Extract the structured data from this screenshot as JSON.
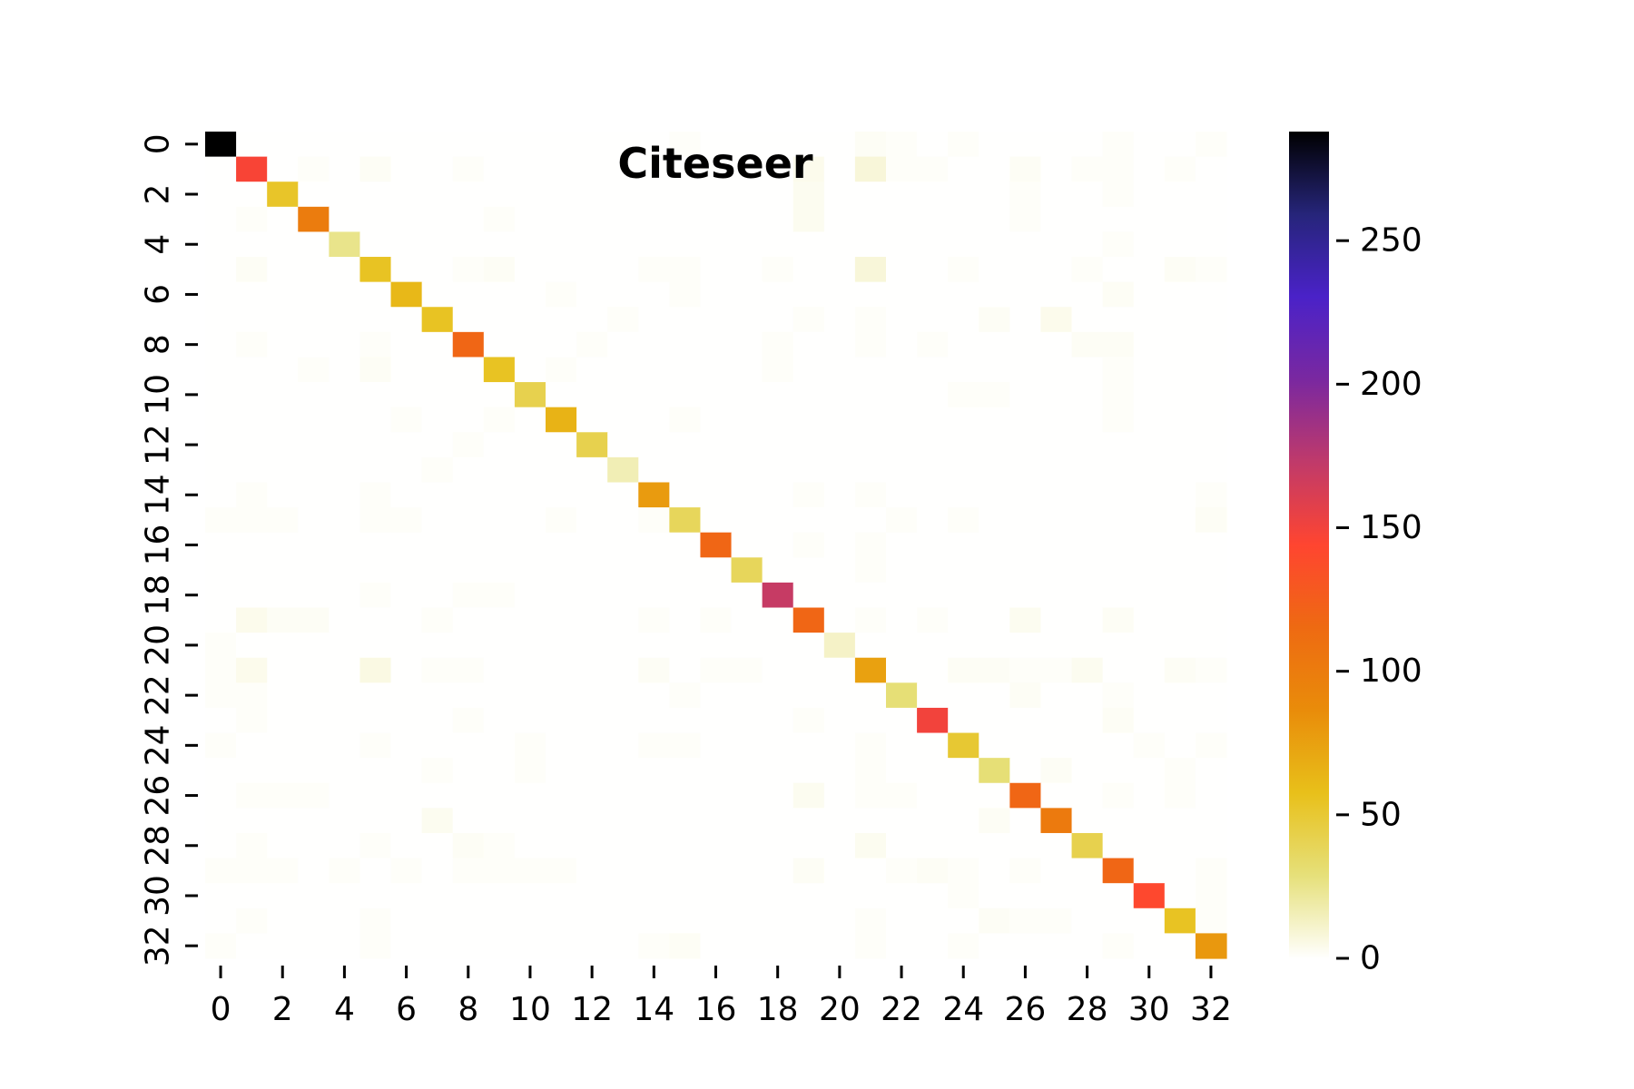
{
  "chart_data": {
    "type": "heatmap",
    "title": "Citeseer",
    "xlabel": "",
    "ylabel": "",
    "n_rows": 33,
    "n_cols": 33,
    "x_tick_labels": [
      "0",
      "2",
      "4",
      "6",
      "8",
      "10",
      "12",
      "14",
      "16",
      "18",
      "20",
      "22",
      "24",
      "26",
      "28",
      "30",
      "32"
    ],
    "y_tick_labels": [
      "0",
      "2",
      "4",
      "6",
      "8",
      "10",
      "12",
      "14",
      "16",
      "18",
      "20",
      "22",
      "24",
      "26",
      "28",
      "30",
      "32"
    ],
    "colorbar": {
      "min": 0,
      "max": 288,
      "ticks": [
        0,
        50,
        100,
        150,
        200,
        250
      ],
      "tick_labels": [
        "0",
        "50",
        "100",
        "150",
        "200",
        "250"
      ],
      "colormap": "CMRmap_r",
      "colormap_stops": [
        "#fffffe",
        "#e6e07a",
        "#e8c01a",
        "#e98c0a",
        "#ee6a12",
        "#ff4530",
        "#c03a6a",
        "#7a28a0",
        "#4a22c8",
        "#26257a",
        "#000000"
      ]
    },
    "grid": false,
    "diagonal": [
      288,
      147,
      53,
      100,
      25,
      55,
      62,
      55,
      118,
      55,
      42,
      65,
      42,
      16,
      78,
      38,
      118,
      38,
      170,
      118,
      12,
      75,
      30,
      150,
      50,
      30,
      118,
      102,
      42,
      118,
      142,
      55,
      80
    ],
    "off_diagonal": [
      [
        0,
        15,
        1
      ],
      [
        0,
        21,
        2
      ],
      [
        0,
        22,
        1
      ],
      [
        0,
        24,
        1
      ],
      [
        0,
        29,
        1
      ],
      [
        0,
        32,
        1
      ],
      [
        1,
        3,
        1
      ],
      [
        1,
        5,
        2
      ],
      [
        1,
        8,
        1
      ],
      [
        1,
        19,
        4
      ],
      [
        1,
        21,
        8
      ],
      [
        1,
        22,
        1
      ],
      [
        1,
        23,
        1
      ],
      [
        1,
        26,
        2
      ],
      [
        1,
        28,
        1
      ],
      [
        1,
        29,
        1
      ],
      [
        1,
        31,
        1
      ],
      [
        2,
        19,
        3
      ],
      [
        2,
        26,
        1
      ],
      [
        2,
        29,
        1
      ],
      [
        3,
        1,
        1
      ],
      [
        3,
        9,
        1
      ],
      [
        3,
        19,
        3
      ],
      [
        3,
        26,
        1
      ],
      [
        4,
        29,
        1
      ],
      [
        5,
        1,
        2
      ],
      [
        5,
        8,
        1
      ],
      [
        5,
        9,
        2
      ],
      [
        5,
        14,
        1
      ],
      [
        5,
        15,
        1
      ],
      [
        5,
        18,
        1
      ],
      [
        5,
        21,
        8
      ],
      [
        5,
        24,
        1
      ],
      [
        5,
        28,
        1
      ],
      [
        5,
        31,
        2
      ],
      [
        5,
        32,
        1
      ],
      [
        6,
        11,
        1
      ],
      [
        6,
        15,
        1
      ],
      [
        6,
        29,
        2
      ],
      [
        7,
        13,
        1
      ],
      [
        7,
        19,
        1
      ],
      [
        7,
        21,
        1
      ],
      [
        7,
        25,
        2
      ],
      [
        7,
        27,
        4
      ],
      [
        8,
        1,
        1
      ],
      [
        8,
        5,
        1
      ],
      [
        8,
        12,
        1
      ],
      [
        8,
        18,
        1
      ],
      [
        8,
        21,
        1
      ],
      [
        8,
        23,
        1
      ],
      [
        8,
        28,
        2
      ],
      [
        8,
        29,
        2
      ],
      [
        9,
        3,
        1
      ],
      [
        9,
        5,
        2
      ],
      [
        9,
        11,
        1
      ],
      [
        9,
        18,
        1
      ],
      [
        9,
        29,
        1
      ],
      [
        10,
        24,
        1
      ],
      [
        10,
        25,
        1
      ],
      [
        10,
        29,
        1
      ],
      [
        11,
        6,
        1
      ],
      [
        11,
        9,
        1
      ],
      [
        11,
        15,
        1
      ],
      [
        11,
        29,
        1
      ],
      [
        12,
        8,
        1
      ],
      [
        13,
        7,
        1
      ],
      [
        14,
        1,
        1
      ],
      [
        14,
        5,
        1
      ],
      [
        14,
        19,
        1
      ],
      [
        14,
        21,
        1
      ],
      [
        14,
        32,
        1
      ],
      [
        15,
        0,
        1
      ],
      [
        15,
        1,
        1
      ],
      [
        15,
        2,
        1
      ],
      [
        15,
        5,
        1
      ],
      [
        15,
        6,
        1
      ],
      [
        15,
        11,
        1
      ],
      [
        15,
        14,
        1
      ],
      [
        15,
        22,
        1
      ],
      [
        15,
        24,
        1
      ],
      [
        15,
        32,
        2
      ],
      [
        16,
        19,
        1
      ],
      [
        16,
        21,
        1
      ],
      [
        17,
        21,
        1
      ],
      [
        18,
        5,
        1
      ],
      [
        18,
        8,
        1
      ],
      [
        18,
        9,
        1
      ],
      [
        19,
        1,
        4
      ],
      [
        19,
        2,
        2
      ],
      [
        19,
        3,
        2
      ],
      [
        19,
        7,
        1
      ],
      [
        19,
        14,
        1
      ],
      [
        19,
        16,
        1
      ],
      [
        19,
        21,
        1
      ],
      [
        19,
        23,
        1
      ],
      [
        19,
        26,
        3
      ],
      [
        19,
        29,
        2
      ],
      [
        20,
        0,
        1
      ],
      [
        21,
        0,
        1
      ],
      [
        21,
        1,
        4
      ],
      [
        21,
        5,
        6
      ],
      [
        21,
        7,
        1
      ],
      [
        21,
        8,
        1
      ],
      [
        21,
        14,
        2
      ],
      [
        21,
        16,
        1
      ],
      [
        21,
        17,
        1
      ],
      [
        21,
        24,
        2
      ],
      [
        21,
        25,
        2
      ],
      [
        21,
        26,
        1
      ],
      [
        21,
        27,
        1
      ],
      [
        21,
        28,
        3
      ],
      [
        21,
        31,
        2
      ],
      [
        21,
        32,
        1
      ],
      [
        22,
        0,
        1
      ],
      [
        22,
        1,
        1
      ],
      [
        22,
        15,
        1
      ],
      [
        22,
        26,
        2
      ],
      [
        22,
        29,
        1
      ],
      [
        23,
        1,
        1
      ],
      [
        23,
        8,
        1
      ],
      [
        23,
        19,
        1
      ],
      [
        23,
        29,
        2
      ],
      [
        24,
        0,
        1
      ],
      [
        24,
        5,
        1
      ],
      [
        24,
        10,
        1
      ],
      [
        24,
        14,
        1
      ],
      [
        24,
        15,
        1
      ],
      [
        24,
        21,
        1
      ],
      [
        24,
        30,
        1
      ],
      [
        24,
        32,
        1
      ],
      [
        25,
        7,
        1
      ],
      [
        25,
        10,
        1
      ],
      [
        25,
        21,
        1
      ],
      [
        25,
        27,
        2
      ],
      [
        25,
        31,
        1
      ],
      [
        26,
        1,
        1
      ],
      [
        26,
        2,
        1
      ],
      [
        26,
        3,
        1
      ],
      [
        26,
        19,
        3
      ],
      [
        26,
        21,
        1
      ],
      [
        26,
        22,
        1
      ],
      [
        26,
        29,
        1
      ],
      [
        26,
        31,
        1
      ],
      [
        27,
        7,
        3
      ],
      [
        27,
        25,
        2
      ],
      [
        28,
        1,
        1
      ],
      [
        28,
        5,
        1
      ],
      [
        28,
        8,
        2
      ],
      [
        28,
        9,
        1
      ],
      [
        28,
        21,
        3
      ],
      [
        29,
        0,
        1
      ],
      [
        29,
        1,
        1
      ],
      [
        29,
        2,
        1
      ],
      [
        29,
        4,
        1
      ],
      [
        29,
        6,
        1
      ],
      [
        29,
        8,
        1
      ],
      [
        29,
        9,
        1
      ],
      [
        29,
        10,
        1
      ],
      [
        29,
        11,
        1
      ],
      [
        29,
        19,
        2
      ],
      [
        29,
        22,
        1
      ],
      [
        29,
        23,
        2
      ],
      [
        29,
        24,
        1
      ],
      [
        29,
        26,
        1
      ],
      [
        29,
        32,
        1
      ],
      [
        30,
        24,
        1
      ],
      [
        30,
        32,
        1
      ],
      [
        31,
        1,
        1
      ],
      [
        31,
        5,
        1
      ],
      [
        31,
        21,
        1
      ],
      [
        31,
        25,
        2
      ],
      [
        31,
        26,
        1
      ],
      [
        31,
        27,
        1
      ],
      [
        31,
        32,
        1
      ],
      [
        32,
        0,
        1
      ],
      [
        32,
        5,
        1
      ],
      [
        32,
        14,
        1
      ],
      [
        32,
        15,
        2
      ],
      [
        32,
        21,
        1
      ],
      [
        32,
        24,
        1
      ],
      [
        32,
        29,
        1
      ]
    ]
  }
}
